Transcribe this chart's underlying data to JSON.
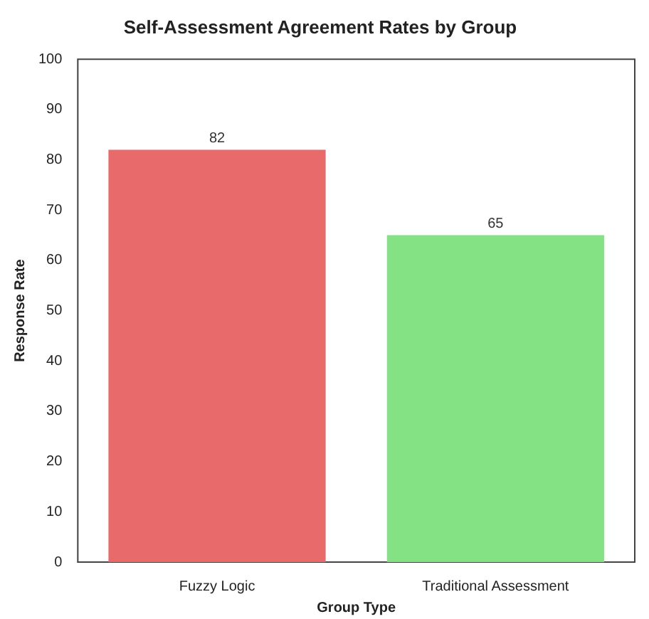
{
  "chart_data": {
    "type": "bar",
    "title": "Self-Assessment Agreement Rates by Group",
    "xlabel": "Group Type",
    "ylabel": "Response Rate",
    "categories": [
      "Fuzzy Logic",
      "Traditional Assessment"
    ],
    "values": [
      82,
      65
    ],
    "colors": [
      "#e86a6a",
      "#84e184"
    ],
    "ylim": [
      0,
      100
    ],
    "yticks": [
      0,
      10,
      20,
      30,
      40,
      50,
      60,
      70,
      80,
      90,
      100
    ],
    "grid": false,
    "legend": false,
    "data_labels": true
  }
}
